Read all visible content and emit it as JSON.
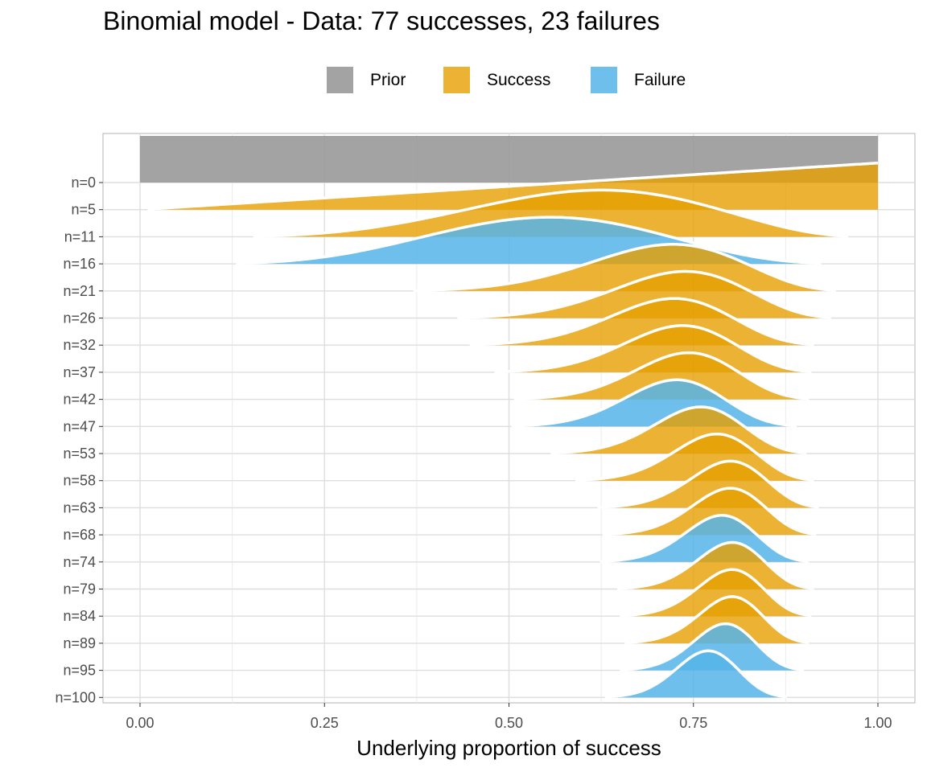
{
  "chart_data": {
    "type": "area",
    "title": "Binomial model - Data: 77 successes, 23 failures",
    "xlabel": "Underlying proportion of success",
    "ylabel": "",
    "xlim": [
      0,
      1
    ],
    "x_ticks": [
      "0.00",
      "0.25",
      "0.50",
      "0.75",
      "1.00"
    ],
    "grid": true,
    "legend_position": "top",
    "legend": [
      {
        "key": "prior",
        "label": "Prior",
        "color": "#999999"
      },
      {
        "key": "success",
        "label": "Success",
        "color": "#E69F00"
      },
      {
        "key": "failure",
        "label": "Failure",
        "color": "#56B4E9"
      }
    ],
    "rows": [
      {
        "label": "n=0",
        "a": 1,
        "b": 1,
        "type": "prior"
      },
      {
        "label": "n=5",
        "a": 2,
        "b": 1,
        "type": "success"
      },
      {
        "label": "n=11",
        "a": 6,
        "b": 4,
        "type": "success"
      },
      {
        "label": "n=16",
        "a": 6,
        "b": 5,
        "type": "failure"
      },
      {
        "label": "n=21",
        "a": 14,
        "b": 6,
        "type": "success"
      },
      {
        "label": "n=26",
        "a": 18,
        "b": 7,
        "type": "success"
      },
      {
        "label": "n=32",
        "a": 22,
        "b": 9,
        "type": "success"
      },
      {
        "label": "n=37",
        "a": 26,
        "b": 10,
        "type": "success"
      },
      {
        "label": "n=42",
        "a": 30,
        "b": 11,
        "type": "success"
      },
      {
        "label": "n=47",
        "a": 33,
        "b": 13,
        "type": "failure"
      },
      {
        "label": "n=53",
        "a": 39,
        "b": 13,
        "type": "success"
      },
      {
        "label": "n=58",
        "a": 44,
        "b": 13,
        "type": "success"
      },
      {
        "label": "n=63",
        "a": 49,
        "b": 13,
        "type": "success"
      },
      {
        "label": "n=68",
        "a": 53,
        "b": 14,
        "type": "success"
      },
      {
        "label": "n=74",
        "a": 57,
        "b": 16,
        "type": "failure"
      },
      {
        "label": "n=79",
        "a": 62,
        "b": 16,
        "type": "success"
      },
      {
        "label": "n=84",
        "a": 66,
        "b": 17,
        "type": "success"
      },
      {
        "label": "n=89",
        "a": 70,
        "b": 18,
        "type": "success"
      },
      {
        "label": "n=95",
        "a": 74,
        "b": 20,
        "type": "failure"
      },
      {
        "label": "n=100",
        "a": 78,
        "b": 24,
        "type": "failure"
      }
    ]
  }
}
